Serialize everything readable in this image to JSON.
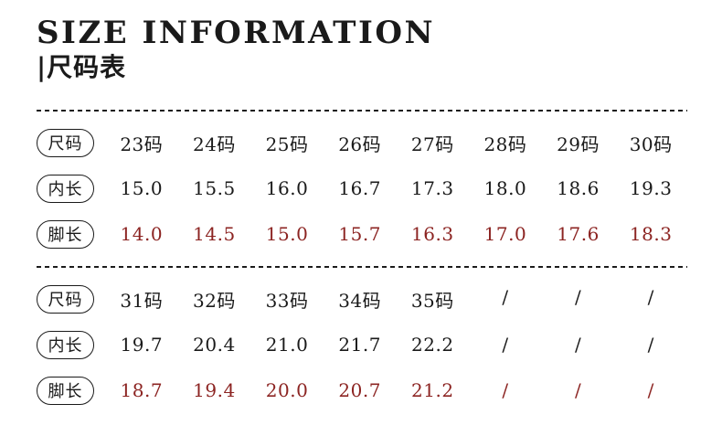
{
  "header": {
    "title": "SIZE INFORMATION",
    "subtitle": "|尺码表"
  },
  "colors": {
    "background": "#ffffff",
    "text": "#1a1a1a",
    "accent_red": "#8c2422"
  },
  "chart_data": {
    "type": "table",
    "title": "SIZE INFORMATION",
    "subtitle": "尺码表",
    "row_header_labels": [
      "尺码",
      "内长",
      "脚长"
    ],
    "sections": [
      {
        "rows": [
          {
            "label": "尺码",
            "accent": false,
            "values": [
              "23码",
              "24码",
              "25码",
              "26码",
              "27码",
              "28码",
              "29码",
              "30码"
            ]
          },
          {
            "label": "内长",
            "accent": false,
            "values": [
              "15.0",
              "15.5",
              "16.0",
              "16.7",
              "17.3",
              "18.0",
              "18.6",
              "19.3"
            ]
          },
          {
            "label": "脚长",
            "accent": true,
            "values": [
              "14.0",
              "14.5",
              "15.0",
              "15.7",
              "16.3",
              "17.0",
              "17.6",
              "18.3"
            ]
          }
        ]
      },
      {
        "rows": [
          {
            "label": "尺码",
            "accent": false,
            "values": [
              "31码",
              "32码",
              "33码",
              "34码",
              "35码",
              "/",
              "/",
              "/"
            ]
          },
          {
            "label": "内长",
            "accent": false,
            "values": [
              "19.7",
              "20.4",
              "21.0",
              "21.7",
              "22.2",
              "/",
              "/",
              "/"
            ]
          },
          {
            "label": "脚长",
            "accent": true,
            "values": [
              "18.7",
              "19.4",
              "20.0",
              "20.7",
              "21.2",
              "/",
              "/",
              "/"
            ]
          }
        ]
      }
    ]
  }
}
